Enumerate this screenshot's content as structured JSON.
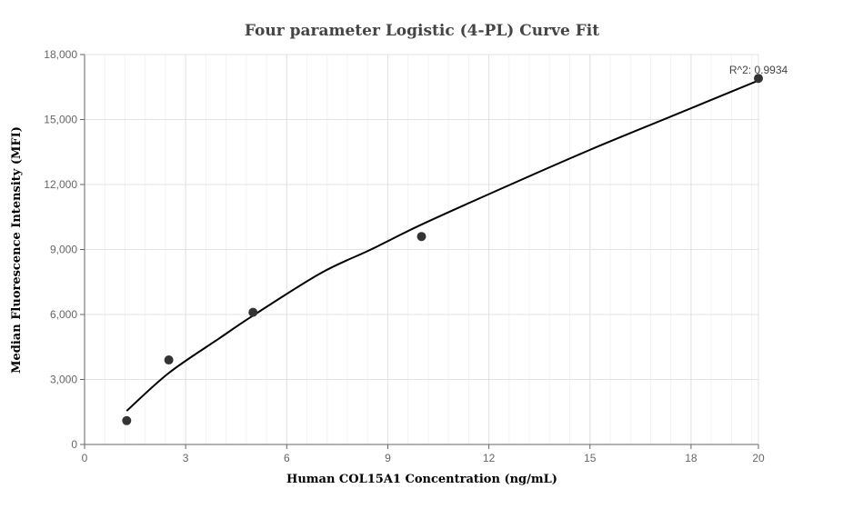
{
  "chart_data": {
    "type": "scatter",
    "title": "Four parameter Logistic (4-PL) Curve Fit",
    "xlabel": "Human COL15A1 Concentration (ng/mL)",
    "ylabel": "Median Fluorescence Intensity (MFI)",
    "xlim": [
      0,
      20
    ],
    "ylim": [
      0,
      18000
    ],
    "xticks": [
      0,
      3,
      6,
      9,
      12,
      15,
      18,
      20
    ],
    "xtick_labels": [
      "0",
      "3",
      "6",
      "9",
      "12",
      "15",
      "18",
      "20"
    ],
    "yticks": [
      0,
      3000,
      6000,
      9000,
      12000,
      15000,
      18000
    ],
    "ytick_labels": [
      "0",
      "3,000",
      "6,000",
      "9,000",
      "12,000",
      "15,000",
      "18,000"
    ],
    "grid": true,
    "points": {
      "x": [
        1.25,
        2.5,
        5,
        10,
        20
      ],
      "y": [
        1100,
        3900,
        6100,
        9600,
        16900
      ]
    },
    "fit_curve": {
      "x": [
        1.25,
        2.5,
        4,
        5,
        7,
        8.5,
        10,
        12.5,
        15,
        17.5,
        20
      ],
      "y": [
        1550,
        3300,
        4900,
        5950,
        7900,
        9000,
        10150,
        11900,
        13600,
        15200,
        16800
      ]
    },
    "annotation": "R^2: 0.9934",
    "point_color": "#333333",
    "curve_color": "#000000"
  }
}
